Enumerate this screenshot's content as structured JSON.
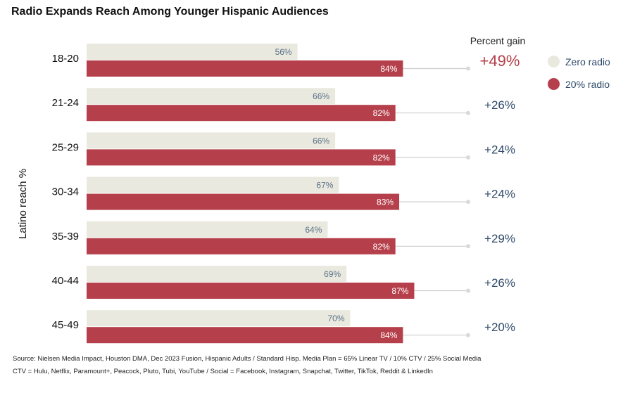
{
  "title": "Radio Expands Reach Among Younger Hispanic Audiences",
  "gain_header": "Percent gain",
  "colors": {
    "zero": "#eae9df",
    "radio": "#b5404b",
    "zero_text": "#5a7287",
    "gain_text": "#2f4a6a",
    "highlight_gain": "#b5404b"
  },
  "legend": [
    {
      "label": "Zero radio",
      "color": "#eae9df"
    },
    {
      "label": "20% radio",
      "color": "#b5404b"
    }
  ],
  "source": [
    "Source: Nielsen Media Impact, Houston DMA, Dec 2023 Fusion, Hispanic Adults / Standard Hisp. Media Plan = 65% Linear TV / 10% CTV / 25% Social Media",
    "CTV = Hulu, Netflix, Paramount+, Peacock, Pluto, Tubi, YouTube / Social = Facebook, Instagram, Snapchat, Twitter, TikTok, Reddit & LinkedIn"
  ],
  "chart_data": {
    "type": "bar",
    "orientation": "horizontal",
    "ylabel": "Latino reach %",
    "categories": [
      "18-20",
      "21-24",
      "25-29",
      "30-34",
      "35-39",
      "40-44",
      "45-49"
    ],
    "series": [
      {
        "name": "Zero radio",
        "values": [
          56,
          66,
          66,
          67,
          64,
          69,
          70
        ],
        "labels": [
          "56%",
          "66%",
          "66%",
          "67%",
          "64%",
          "69%",
          "70%"
        ]
      },
      {
        "name": "20% radio",
        "values": [
          84,
          82,
          82,
          83,
          82,
          87,
          84
        ],
        "labels": [
          "84%",
          "82%",
          "82%",
          "83%",
          "82%",
          "87%",
          "84%"
        ]
      }
    ],
    "percent_gain": [
      "+49%",
      "+26%",
      "+24%",
      "+24%",
      "+29%",
      "+26%",
      "+20%"
    ],
    "highlighted_category": "18-20",
    "xlim": [
      0,
      100
    ],
    "grid": false,
    "legend_position": "top-right"
  }
}
